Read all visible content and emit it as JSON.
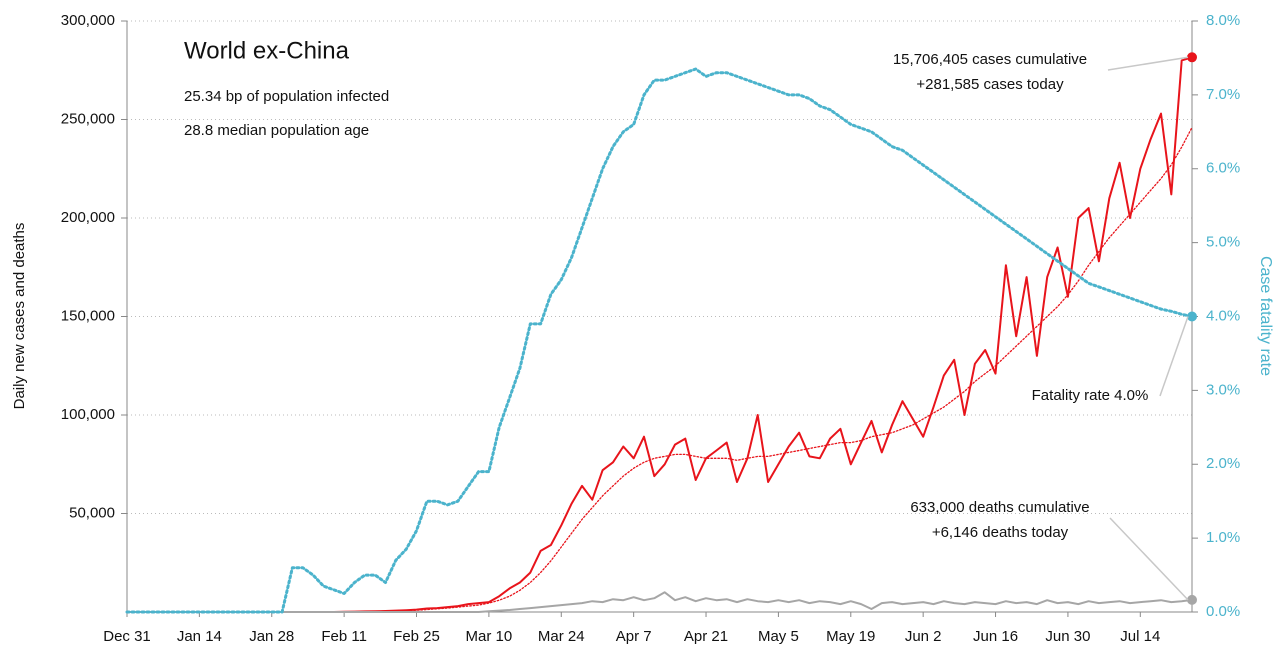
{
  "chart_data": {
    "type": "line",
    "title": "World ex-China",
    "subtitle": [
      "25.34 bp of population infected",
      "28.8 median population age"
    ],
    "y_label": "Daily new cases and deaths",
    "y2_label": "Case fatality rate",
    "categories": [
      "Dec 31",
      null,
      null,
      null,
      null,
      null,
      null,
      "Jan 14",
      null,
      null,
      null,
      null,
      null,
      null,
      "Jan 28",
      null,
      null,
      null,
      null,
      null,
      null,
      "Feb 11",
      null,
      null,
      null,
      null,
      null,
      null,
      "Feb 25",
      null,
      null,
      null,
      null,
      null,
      null,
      "Mar 10",
      null,
      null,
      null,
      null,
      null,
      null,
      "Mar 24",
      null,
      null,
      null,
      null,
      null,
      null,
      "Apr 7",
      null,
      null,
      null,
      null,
      null,
      null,
      "Apr 21",
      null,
      null,
      null,
      null,
      null,
      null,
      "May 5",
      null,
      null,
      null,
      null,
      null,
      null,
      "May 19",
      null,
      null,
      null,
      null,
      null,
      null,
      "Jun 2",
      null,
      null,
      null,
      null,
      null,
      null,
      "Jun 16",
      null,
      null,
      null,
      null,
      null,
      null,
      "Jun 30",
      null,
      null,
      null,
      null,
      null,
      null,
      "Jul 14",
      null,
      null,
      null,
      null,
      null
    ],
    "series": [
      {
        "color": "#e8141b",
        "line_style": "solid",
        "end_marker": true,
        "values": [
          0,
          0,
          0,
          0,
          0,
          0,
          0,
          0,
          0,
          0,
          0,
          0,
          0,
          0,
          0,
          0,
          0,
          0,
          0,
          0,
          0,
          100,
          200,
          300,
          400,
          500,
          700,
          900,
          1200,
          1800,
          2000,
          2500,
          3000,
          4000,
          4500,
          5000,
          8000,
          12000,
          15000,
          20000,
          31000,
          34000,
          44000,
          55000,
          64000,
          57000,
          72000,
          76000,
          84000,
          78000,
          89000,
          69000,
          75000,
          85000,
          88000,
          67000,
          78000,
          82000,
          86000,
          66000,
          78000,
          100000,
          66000,
          75000,
          84000,
          91000,
          79000,
          78000,
          88000,
          93000,
          75000,
          86000,
          97000,
          81000,
          95000,
          107000,
          98000,
          89000,
          104000,
          120000,
          128000,
          100000,
          126000,
          133000,
          121000,
          176000,
          140000,
          170000,
          130000,
          170000,
          185000,
          160000,
          200000,
          205000,
          178000,
          210000,
          228000,
          200000,
          225000,
          240000,
          253000,
          212000,
          280000,
          281585
        ]
      },
      {
        "color": "#e8141b",
        "line_style": "dotted",
        "end_marker": false,
        "values": [
          0,
          0,
          0,
          0,
          0,
          0,
          0,
          0,
          0,
          0,
          0,
          0,
          0,
          0,
          0,
          0,
          0,
          0,
          0,
          0,
          0,
          0,
          0,
          0,
          0,
          300,
          500,
          700,
          900,
          1200,
          1600,
          2000,
          2500,
          3000,
          3500,
          4500,
          6000,
          8000,
          11000,
          15000,
          20000,
          26000,
          33000,
          40000,
          47000,
          53000,
          59000,
          64000,
          69000,
          73000,
          76000,
          78000,
          79000,
          80000,
          80000,
          79000,
          78000,
          78000,
          78000,
          77000,
          78000,
          79000,
          79000,
          80000,
          81000,
          82000,
          83000,
          84000,
          85000,
          86000,
          86000,
          87000,
          89000,
          90000,
          91000,
          93000,
          95000,
          98000,
          101000,
          104000,
          108000,
          112000,
          117000,
          121000,
          125000,
          130000,
          135000,
          140000,
          145000,
          150000,
          155000,
          161000,
          168000,
          176000,
          183000,
          190000,
          196000,
          202000,
          208000,
          214000,
          220000,
          227000,
          236000,
          246000
        ]
      },
      {
        "color": "#a6a6a6",
        "line_style": "solid",
        "end_marker": true,
        "values": [
          0,
          0,
          0,
          0,
          0,
          0,
          0,
          0,
          0,
          0,
          0,
          0,
          0,
          0,
          0,
          0,
          0,
          0,
          0,
          0,
          0,
          0,
          0,
          0,
          0,
          0,
          0,
          0,
          0,
          0,
          0,
          0,
          0,
          0,
          0,
          400,
          700,
          1000,
          1500,
          2000,
          2500,
          3000,
          3500,
          4000,
          4500,
          5500,
          5000,
          6500,
          6000,
          7500,
          6000,
          7000,
          10000,
          6000,
          7500,
          5500,
          7000,
          6000,
          6500,
          5000,
          6500,
          5500,
          5000,
          6000,
          5000,
          6000,
          4500,
          5500,
          5000,
          4000,
          5500,
          4000,
          1500,
          4500,
          5000,
          4000,
          4500,
          5000,
          4000,
          5500,
          4500,
          4000,
          5000,
          4500,
          4000,
          5500,
          4500,
          5000,
          4000,
          6000,
          4500,
          5000,
          4000,
          5500,
          4500,
          5000,
          5500,
          4500,
          5000,
          5500,
          6000,
          5000,
          5500,
          6146
        ]
      },
      {
        "color": "#4bb3cc",
        "line_style": "dotted",
        "end_marker": true,
        "axis": "y2",
        "values": [
          0,
          0,
          0,
          0,
          0,
          0,
          0,
          0,
          0,
          0,
          0,
          0,
          0,
          0,
          0,
          0,
          0.6,
          0.6,
          0.5,
          0.35,
          0.3,
          0.25,
          0.4,
          0.5,
          0.5,
          0.4,
          0.7,
          0.85,
          1.1,
          1.5,
          1.5,
          1.45,
          1.5,
          1.7,
          1.9,
          1.9,
          2.5,
          2.9,
          3.3,
          3.9,
          3.9,
          4.3,
          4.5,
          4.8,
          5.2,
          5.6,
          6.0,
          6.3,
          6.5,
          6.6,
          7.0,
          7.2,
          7.2,
          7.25,
          7.3,
          7.35,
          7.25,
          7.3,
          7.3,
          7.25,
          7.2,
          7.15,
          7.1,
          7.05,
          7.0,
          7.0,
          6.95,
          6.85,
          6.8,
          6.7,
          6.6,
          6.55,
          6.5,
          6.4,
          6.3,
          6.25,
          6.15,
          6.05,
          5.95,
          5.85,
          5.75,
          5.65,
          5.55,
          5.45,
          5.35,
          5.25,
          5.15,
          5.05,
          4.95,
          4.85,
          4.75,
          4.65,
          4.55,
          4.45,
          4.4,
          4.35,
          4.3,
          4.25,
          4.2,
          4.15,
          4.1,
          4.07,
          4.03,
          4.0
        ]
      }
    ],
    "ylim": [
      0,
      300000
    ],
    "yticks": [
      {
        "value": 50000,
        "label": "50,000"
      },
      {
        "value": 100000,
        "label": "100,000"
      },
      {
        "value": 150000,
        "label": "150,000"
      },
      {
        "value": 200000,
        "label": "200,000"
      },
      {
        "value": 250000,
        "label": "250,000"
      },
      {
        "value": 300000,
        "label": "300,000"
      }
    ],
    "y2lim": [
      0,
      8
    ],
    "y2ticks": [
      {
        "value": 0,
        "label": "0.0%"
      },
      {
        "value": 1,
        "label": "1.0%"
      },
      {
        "value": 2,
        "label": "2.0%"
      },
      {
        "value": 3,
        "label": "3.0%"
      },
      {
        "value": 4,
        "label": "4.0%"
      },
      {
        "value": 5,
        "label": "5.0%"
      },
      {
        "value": 6,
        "label": "6.0%"
      },
      {
        "value": 7,
        "label": "7.0%"
      },
      {
        "value": 8,
        "label": "8.0%"
      }
    ],
    "grid": true,
    "annotations": [
      "15,706,405 cases cumulative",
      "+281,585 cases today",
      "Fatality rate 4.0%",
      "633,000 deaths cumulative",
      "+6,146 deaths today"
    ]
  }
}
